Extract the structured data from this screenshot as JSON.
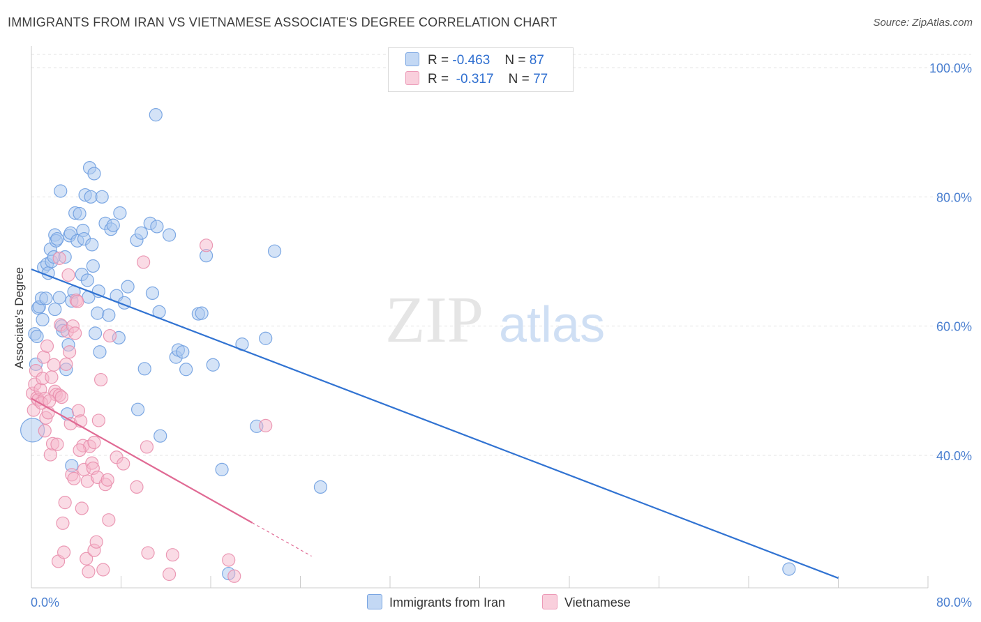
{
  "title": "IMMIGRANTS FROM IRAN VS VIETNAMESE ASSOCIATE'S DEGREE CORRELATION CHART",
  "source": "Source: ZipAtlas.com",
  "watermark": {
    "zip": "ZIP",
    "atlas": "atlas"
  },
  "legend": {
    "rows": [
      {
        "r_label": "R =",
        "r_value": "-0.463",
        "n_label": "N =",
        "n_value": "87"
      },
      {
        "r_label": "R =",
        "r_value": "-0.317",
        "n_label": "N =",
        "n_value": "77"
      }
    ]
  },
  "colors": {
    "iran_fill": "#a9c8f0",
    "iran_stroke": "#6f9fe0",
    "iran_line": "#3173d2",
    "viet_fill": "#f6b8cb",
    "viet_stroke": "#e98fad",
    "viet_line": "#e06a94",
    "grid": "#e3e3e3",
    "tick_text": "#4a7fd0"
  },
  "chart_data": {
    "type": "scatter",
    "title": "IMMIGRANTS FROM IRAN VS VIETNAMESE ASSOCIATE'S DEGREE CORRELATION CHART",
    "xlabel": "",
    "ylabel": "Associate's Degree",
    "xlim": [
      0,
      80
    ],
    "ylim": [
      20,
      100
    ],
    "x_tick_labels": [
      "0.0%",
      "80.0%"
    ],
    "y_ticks": [
      40,
      60,
      80,
      100
    ],
    "y_tick_labels": [
      "40.0%",
      "60.0%",
      "80.0%",
      "100.0%"
    ],
    "grid": true,
    "legend_position": "bottom",
    "series": [
      {
        "name": "Immigrants from Iran",
        "color": "#a9c8f0",
        "trend": {
          "x": [
            0,
            72
          ],
          "y": [
            68.8,
            21.0
          ]
        },
        "points": [
          [
            0.1,
            43.9
          ],
          [
            0.3,
            58.8
          ],
          [
            0.4,
            54.1
          ],
          [
            0.5,
            58.4
          ],
          [
            0.6,
            62.8
          ],
          [
            0.7,
            63.0
          ],
          [
            0.9,
            64.3
          ],
          [
            1.0,
            61.0
          ],
          [
            1.1,
            69.1
          ],
          [
            1.3,
            64.3
          ],
          [
            1.4,
            69.6
          ],
          [
            1.5,
            68.2
          ],
          [
            1.7,
            71.9
          ],
          [
            1.8,
            70.0
          ],
          [
            2.0,
            70.7
          ],
          [
            2.1,
            74.1
          ],
          [
            2.2,
            73.2
          ],
          [
            2.3,
            73.5
          ],
          [
            2.5,
            64.4
          ],
          [
            2.6,
            80.9
          ],
          [
            2.7,
            60.0
          ],
          [
            2.8,
            59.3
          ],
          [
            3.0,
            70.7
          ],
          [
            3.1,
            53.3
          ],
          [
            3.2,
            46.4
          ],
          [
            3.3,
            57.1
          ],
          [
            3.4,
            74.0
          ],
          [
            3.5,
            74.4
          ],
          [
            3.6,
            63.9
          ],
          [
            3.8,
            65.3
          ],
          [
            3.9,
            77.5
          ],
          [
            4.1,
            73.2
          ],
          [
            4.3,
            77.4
          ],
          [
            4.5,
            68.0
          ],
          [
            4.6,
            74.8
          ],
          [
            4.7,
            73.5
          ],
          [
            4.8,
            80.3
          ],
          [
            5.0,
            67.1
          ],
          [
            5.1,
            64.5
          ],
          [
            5.2,
            84.5
          ],
          [
            5.3,
            80.0
          ],
          [
            5.4,
            72.6
          ],
          [
            5.5,
            69.3
          ],
          [
            5.6,
            83.6
          ],
          [
            5.7,
            58.9
          ],
          [
            5.9,
            62.0
          ],
          [
            6.1,
            56.0
          ],
          [
            6.3,
            80.0
          ],
          [
            6.6,
            75.9
          ],
          [
            6.9,
            61.7
          ],
          [
            7.1,
            75.0
          ],
          [
            7.3,
            75.6
          ],
          [
            7.6,
            64.7
          ],
          [
            7.8,
            58.2
          ],
          [
            7.9,
            77.5
          ],
          [
            8.3,
            63.6
          ],
          [
            8.6,
            66.1
          ],
          [
            9.4,
            73.3
          ],
          [
            9.5,
            47.1
          ],
          [
            9.8,
            74.4
          ],
          [
            10.1,
            53.4
          ],
          [
            10.6,
            75.9
          ],
          [
            10.8,
            65.1
          ],
          [
            11.1,
            92.7
          ],
          [
            11.4,
            62.2
          ],
          [
            11.5,
            43.0
          ],
          [
            12.3,
            74.1
          ],
          [
            12.9,
            55.2
          ],
          [
            13.1,
            56.3
          ],
          [
            13.5,
            56.0
          ],
          [
            13.8,
            53.3
          ],
          [
            14.9,
            61.9
          ],
          [
            15.2,
            62.0
          ],
          [
            15.6,
            70.9
          ],
          [
            16.2,
            54.0
          ],
          [
            17.0,
            37.8
          ],
          [
            17.6,
            21.7
          ],
          [
            18.8,
            57.2
          ],
          [
            20.1,
            44.5
          ],
          [
            20.9,
            58.1
          ],
          [
            21.7,
            71.6
          ],
          [
            25.8,
            35.1
          ],
          [
            67.6,
            22.4
          ],
          [
            2.1,
            62.6
          ],
          [
            3.6,
            38.4
          ],
          [
            6.0,
            65.4
          ],
          [
            11.2,
            75.4
          ]
        ]
      },
      {
        "name": "Vietnamese",
        "color": "#f6b8cb",
        "trend": {
          "x": [
            0,
            25
          ],
          "y": [
            48.8,
            24.4
          ]
        },
        "points": [
          [
            0.1,
            49.6
          ],
          [
            0.2,
            47.0
          ],
          [
            0.3,
            51.0
          ],
          [
            0.4,
            53.1
          ],
          [
            0.5,
            48.9
          ],
          [
            0.6,
            48.6
          ],
          [
            0.8,
            50.2
          ],
          [
            1.0,
            51.9
          ],
          [
            1.1,
            55.2
          ],
          [
            1.2,
            48.8
          ],
          [
            1.3,
            45.8
          ],
          [
            1.4,
            56.9
          ],
          [
            1.5,
            46.6
          ],
          [
            1.7,
            40.1
          ],
          [
            1.8,
            52.1
          ],
          [
            1.9,
            41.8
          ],
          [
            2.0,
            54.0
          ],
          [
            2.1,
            49.9
          ],
          [
            2.2,
            49.4
          ],
          [
            2.3,
            41.7
          ],
          [
            2.4,
            23.6
          ],
          [
            2.5,
            49.3
          ],
          [
            2.6,
            60.2
          ],
          [
            2.8,
            29.5
          ],
          [
            2.9,
            25.0
          ],
          [
            3.0,
            32.7
          ],
          [
            3.1,
            54.1
          ],
          [
            3.2,
            59.2
          ],
          [
            3.4,
            56.0
          ],
          [
            3.5,
            44.9
          ],
          [
            3.6,
            37.0
          ],
          [
            3.7,
            60.0
          ],
          [
            3.8,
            36.4
          ],
          [
            3.9,
            58.9
          ],
          [
            4.0,
            64.0
          ],
          [
            4.1,
            63.8
          ],
          [
            4.2,
            46.9
          ],
          [
            4.4,
            45.3
          ],
          [
            4.5,
            31.8
          ],
          [
            4.6,
            41.5
          ],
          [
            4.7,
            37.8
          ],
          [
            4.9,
            24.0
          ],
          [
            5.0,
            36.0
          ],
          [
            5.1,
            22.0
          ],
          [
            5.2,
            41.4
          ],
          [
            5.4,
            38.8
          ],
          [
            5.5,
            38.0
          ],
          [
            5.6,
            25.3
          ],
          [
            5.8,
            26.6
          ],
          [
            5.9,
            36.6
          ],
          [
            6.0,
            45.4
          ],
          [
            6.2,
            51.7
          ],
          [
            6.4,
            22.3
          ],
          [
            6.6,
            35.5
          ],
          [
            6.8,
            36.2
          ],
          [
            7.0,
            58.5
          ],
          [
            7.6,
            39.7
          ],
          [
            8.2,
            38.7
          ],
          [
            9.4,
            35.1
          ],
          [
            10.0,
            69.9
          ],
          [
            10.3,
            41.3
          ],
          [
            10.4,
            24.9
          ],
          [
            12.3,
            21.6
          ],
          [
            12.6,
            24.6
          ],
          [
            15.6,
            72.5
          ],
          [
            17.6,
            23.8
          ],
          [
            18.1,
            21.3
          ],
          [
            20.9,
            44.6
          ],
          [
            0.9,
            48.1
          ],
          [
            1.6,
            48.4
          ],
          [
            2.7,
            49.0
          ],
          [
            3.3,
            67.9
          ],
          [
            2.5,
            70.5
          ],
          [
            1.2,
            43.8
          ],
          [
            4.3,
            40.8
          ],
          [
            5.6,
            42.0
          ],
          [
            6.9,
            30.0
          ]
        ]
      }
    ]
  }
}
